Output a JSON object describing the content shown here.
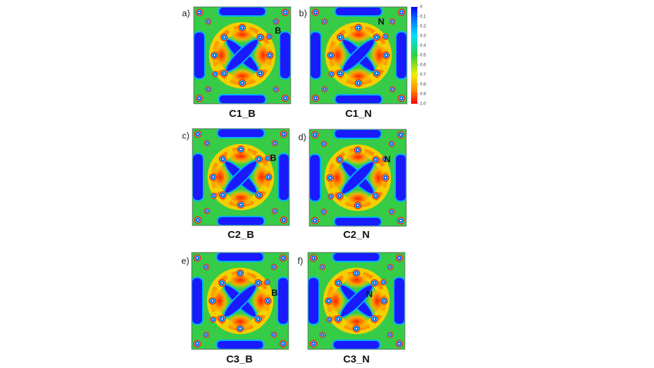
{
  "panels": [
    {
      "label": "a)",
      "caption": "C1_B",
      "atom": "B"
    },
    {
      "label": "b)",
      "caption": "C1_N",
      "atom": "N"
    },
    {
      "label": "c)",
      "caption": "C2_B",
      "atom": "B"
    },
    {
      "label": "d)",
      "caption": "C2_N",
      "atom": "N"
    },
    {
      "label": "e)",
      "caption": "C3_B",
      "atom": "B"
    },
    {
      "label": "f)",
      "caption": "C3_N",
      "atom": "N"
    }
  ],
  "colorbar": {
    "ticks": [
      0,
      0.1,
      0.2,
      0.3,
      0.4,
      0.5,
      0.6,
      0.7,
      0.8,
      0.9,
      {
        "value": 1,
        "label": "1.0"
      }
    ]
  }
}
